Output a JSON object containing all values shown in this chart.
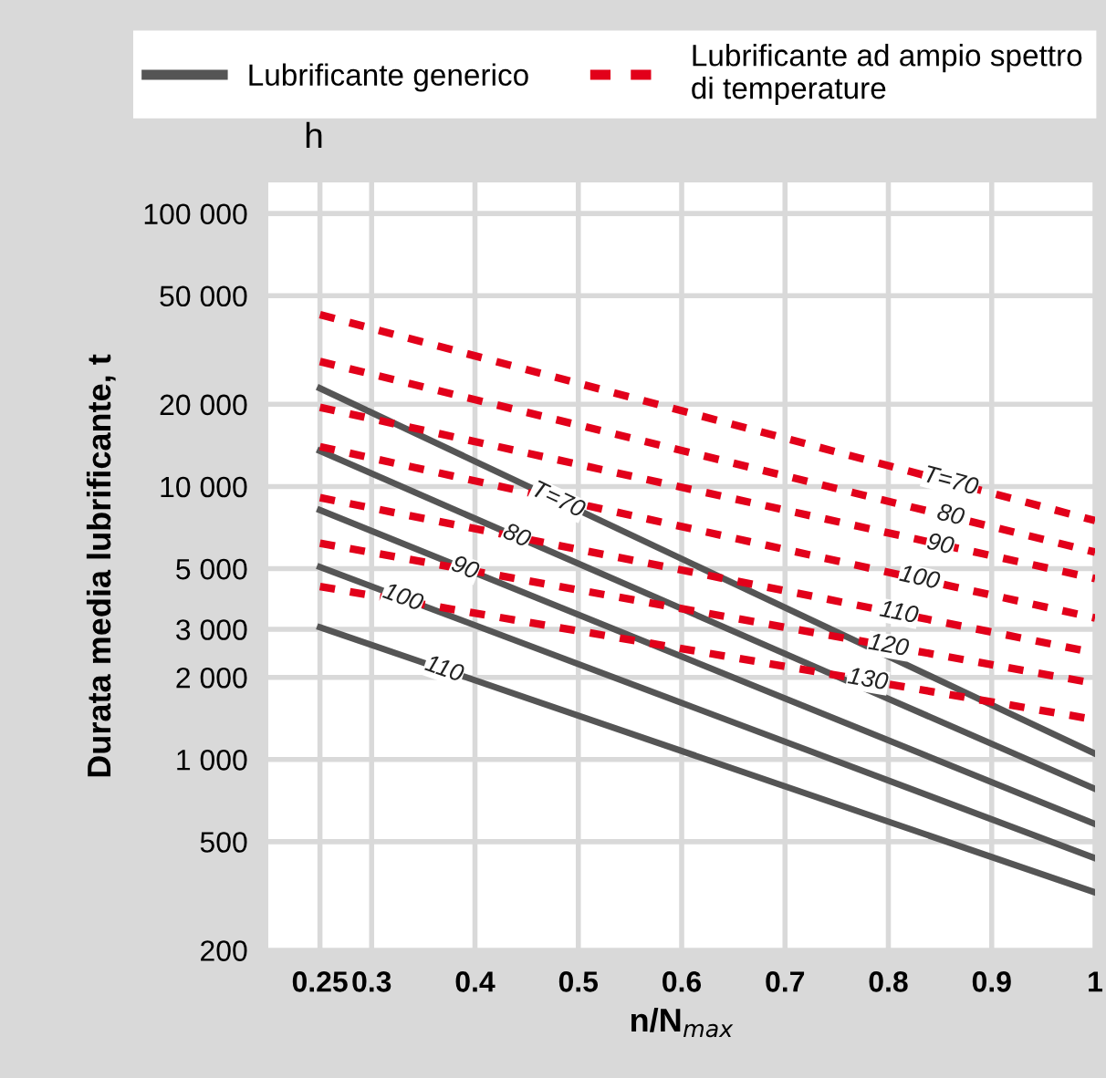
{
  "chart_data": {
    "type": "line",
    "xlabel": "n/N$_{max}$",
    "ylabel": "Durata media lubrificante, t",
    "log": "y",
    "grid": true,
    "legend": "top",
    "marker": "none",
    "x": [
      0.25,
      1
    ],
    "xlim": [
      0.2,
      1.0
    ],
    "xticks": [
      0.25,
      0.3,
      0.4,
      0.5,
      0.6,
      0.7,
      0.8,
      0.9,
      1
    ],
    "ylim": [
      200,
      130000
    ],
    "yticks": [
      200,
      500,
      {
        "value": 1000,
        "label": "1 000"
      },
      {
        "value": 2000,
        "label": "2 000"
      },
      {
        "value": 3000,
        "label": "3 000"
      },
      {
        "value": 5000,
        "label": "5 000"
      },
      {
        "value": 10000,
        "label": "10 000"
      },
      {
        "value": 20000,
        "label": "20 000"
      },
      {
        "value": 50000,
        "label": "50 000"
      },
      {
        "value": 100000,
        "label": "100 000"
      }
    ],
    "series": [
      {
        "name": "Lubrificante generico",
        "color": "#555555",
        "line_style": "solid",
        "values": [
          22900,
          1050
        ]
      },
      {
        "color": "#555555",
        "line_style": "solid",
        "values": [
          13500,
          780
        ]
      },
      {
        "color": "#555555",
        "line_style": "solid",
        "values": [
          8200,
          580
        ]
      },
      {
        "color": "#555555",
        "line_style": "solid",
        "values": [
          5070,
          435
        ]
      },
      {
        "color": "#555555",
        "line_style": "solid",
        "values": [
          3050,
          326
        ]
      },
      {
        "name": "Lubrificante ad ampio spettro\ndi temperature",
        "color": "#e2001a",
        "line_style": "dashed",
        "values": [
          42600,
          7500
        ]
      },
      {
        "color": "#e2001a",
        "line_style": "dashed",
        "values": [
          28700,
          5750
        ]
      },
      {
        "color": "#e2001a",
        "line_style": "dashed",
        "values": [
          19500,
          4600
        ]
      },
      {
        "color": "#e2001a",
        "line_style": "dashed",
        "values": [
          14000,
          3300
        ]
      },
      {
        "color": "#e2001a",
        "line_style": "dashed",
        "values": [
          9100,
          2460
        ]
      },
      {
        "color": "#e2001a",
        "line_style": "dashed",
        "values": [
          6200,
          1900
        ]
      },
      {
        "color": "#e2001a",
        "line_style": "dashed",
        "values": [
          4300,
          1400
        ]
      }
    ],
    "annotations": [
      {
        "text": "T=70",
        "x": 0.48,
        "y": 8900
      },
      {
        "text": "80",
        "x": 0.44,
        "y": 6560
      },
      {
        "text": "90",
        "x": 0.39,
        "y": 5000
      },
      {
        "text": "100",
        "x": 0.33,
        "y": 3900
      },
      {
        "text": "110",
        "x": 0.37,
        "y": 2130
      },
      {
        "text": "T=70",
        "x": 0.86,
        "y": 10400
      },
      {
        "text": "80",
        "x": 0.86,
        "y": 7800
      },
      {
        "text": "90",
        "x": 0.85,
        "y": 6100
      },
      {
        "text": "100",
        "x": 0.83,
        "y": 4600
      },
      {
        "text": "110",
        "x": 0.81,
        "y": 3430
      },
      {
        "text": "120",
        "x": 0.8,
        "y": 2600
      },
      {
        "text": "130",
        "x": 0.78,
        "y": 1950
      },
      "h"
    ]
  }
}
